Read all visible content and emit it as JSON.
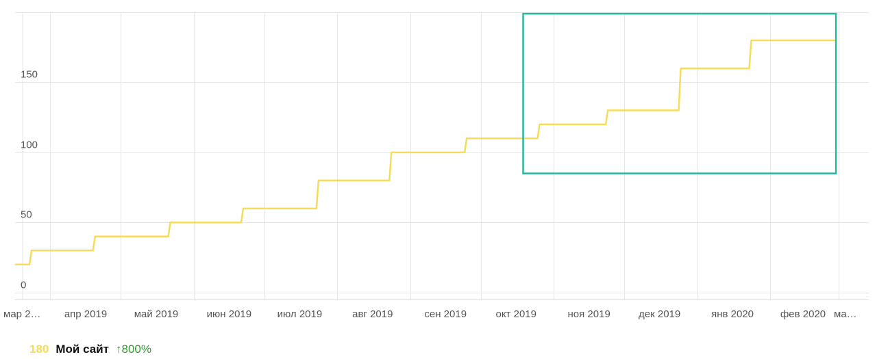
{
  "chart_data": {
    "type": "line",
    "step": true,
    "x_ticks": [
      "мар 2…",
      "апр 2019",
      "май 2019",
      "июн 2019",
      "июл 2019",
      "авг 2019",
      "сен 2019",
      "окт 2019",
      "ноя 2019",
      "дек 2019",
      "янв 2020",
      "фев 2020",
      "ма…"
    ],
    "y_ticks": [
      "0",
      "50",
      "100",
      "150"
    ],
    "ylim": [
      -5,
      200
    ],
    "grid": true,
    "series": [
      {
        "name": "Мой сайт",
        "color": "#f5dc5a",
        "points": [
          {
            "x": "2019-03-17",
            "y": 20
          },
          {
            "x": "2019-03-24",
            "y": 30
          },
          {
            "x": "2019-04-20",
            "y": 40
          },
          {
            "x": "2019-05-22",
            "y": 50
          },
          {
            "x": "2019-06-22",
            "y": 60
          },
          {
            "x": "2019-07-24",
            "y": 80
          },
          {
            "x": "2019-08-24",
            "y": 100
          },
          {
            "x": "2019-09-25",
            "y": 110
          },
          {
            "x": "2019-10-26",
            "y": 120
          },
          {
            "x": "2019-11-24",
            "y": 130
          },
          {
            "x": "2019-12-25",
            "y": 160
          },
          {
            "x": "2020-01-24",
            "y": 180
          },
          {
            "x": "2020-02-29",
            "y": 180
          }
        ]
      }
    ],
    "highlight_box": {
      "color": "#2bb5a0",
      "x_from": "2019-10-19",
      "x_to": "2020-02-29",
      "y_from": 85,
      "y_to": 199
    }
  },
  "legend": {
    "value": "180",
    "value_color": "#f5dc5a",
    "name": "Мой сайт",
    "change": "↑800%",
    "change_color": "#2e9b2e"
  }
}
